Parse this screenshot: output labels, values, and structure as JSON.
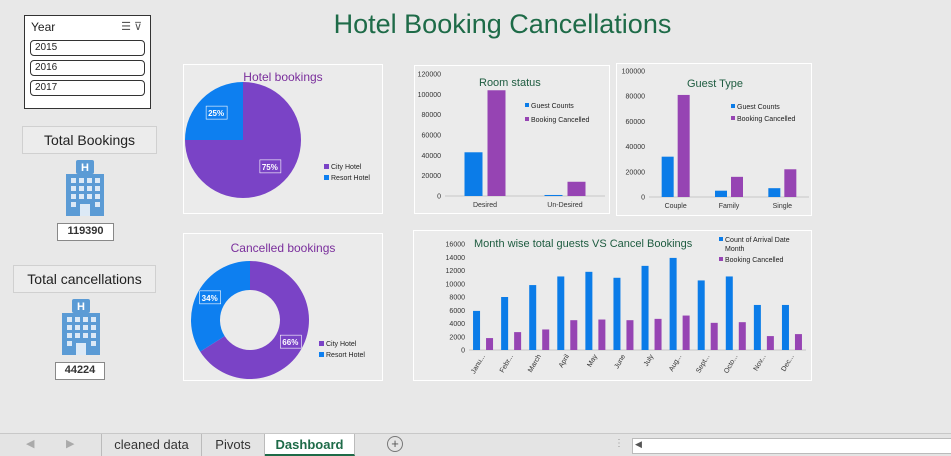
{
  "title": "Hotel Booking Cancellations",
  "slicer": {
    "title": "Year",
    "items": [
      "2015",
      "2016",
      "2017"
    ]
  },
  "kpis": [
    {
      "label": "Total Bookings",
      "value": "119390"
    },
    {
      "label": "Total cancellations",
      "value": "44224"
    }
  ],
  "colors": {
    "purple": "#7a43c6",
    "blue": "#0d7ff0",
    "bar_blue": "#0b7ce8",
    "bar_purple": "#9644b3",
    "title_green": "#1e6b48",
    "pie_title_purple": "#7a2e9c",
    "chart_title_green": "#1e5c40"
  },
  "tabs": [
    "cleaned data",
    "Pivots",
    "Dashboard"
  ],
  "active_tab": "Dashboard",
  "chart_data": [
    {
      "id": "hotel_bookings",
      "type": "pie",
      "title": "Hotel bookings",
      "labels": [
        "City Hotel",
        "Resort Hotel"
      ],
      "values": [
        75,
        25
      ],
      "data_labels": [
        "75%",
        "25%"
      ],
      "legend": "right"
    },
    {
      "id": "cancelled_bookings",
      "type": "doughnut",
      "title": "Cancelled bookings",
      "labels": [
        "City Hotel",
        "Resort Hotel"
      ],
      "values": [
        66,
        34
      ],
      "data_labels": [
        "66%",
        "34%"
      ],
      "legend": "right"
    },
    {
      "id": "room_status",
      "type": "bar",
      "title": "Room status",
      "categories": [
        "Desired",
        "Un-Desired"
      ],
      "series": [
        {
          "name": "Guest Counts",
          "values": [
            43000,
            1000
          ]
        },
        {
          "name": "Booking Cancelled",
          "values": [
            104000,
            14000
          ]
        }
      ],
      "ylim": [
        0,
        120000
      ],
      "yticks": [
        "0",
        "20000",
        "40000",
        "60000",
        "80000",
        "100000",
        "120000"
      ],
      "legend": "right"
    },
    {
      "id": "guest_type",
      "type": "bar",
      "title": "Guest Type",
      "categories": [
        "Couple",
        "Family",
        "Single"
      ],
      "series": [
        {
          "name": "Guest Counts",
          "values": [
            32000,
            5000,
            7000
          ]
        },
        {
          "name": "Booking Cancelled",
          "values": [
            81000,
            16000,
            22000
          ]
        }
      ],
      "ylim": [
        0,
        100000
      ],
      "yticks": [
        "0",
        "20000",
        "40000",
        "60000",
        "80000",
        "100000"
      ],
      "legend": "right"
    },
    {
      "id": "month_wise",
      "type": "bar",
      "title": "Month wise total guests VS Cancel Bookings",
      "categories": [
        "Janu...",
        "Febr...",
        "March",
        "April",
        "May",
        "June",
        "July",
        "Aug...",
        "Sept...",
        "Octo...",
        "Nov...",
        "Dec..."
      ],
      "series": [
        {
          "name": "Count of Arrival Date Month",
          "values": [
            5900,
            8000,
            9800,
            11100,
            11800,
            10900,
            12700,
            13900,
            10500,
            11100,
            6800,
            6800
          ]
        },
        {
          "name": "Booking Cancelled",
          "values": [
            1800,
            2700,
            3100,
            4500,
            4600,
            4500,
            4700,
            5200,
            4100,
            4200,
            2100,
            2400
          ]
        }
      ],
      "ylim": [
        0,
        16000
      ],
      "yticks": [
        "0",
        "2000",
        "4000",
        "6000",
        "8000",
        "10000",
        "12000",
        "14000",
        "16000"
      ],
      "legend": "top-right"
    }
  ]
}
